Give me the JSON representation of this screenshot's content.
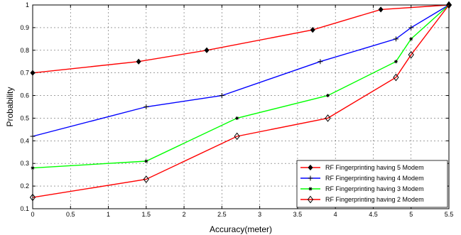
{
  "chart_data": {
    "type": "line",
    "xlabel": "Accuracy(meter)",
    "ylabel": "Probability",
    "xlim": [
      0,
      5.5
    ],
    "ylim": [
      0.1,
      1
    ],
    "xticks": [
      0,
      0.5,
      1,
      1.5,
      2,
      2.5,
      3,
      3.5,
      4,
      4.5,
      5,
      5.5
    ],
    "xtick_labels": [
      "0",
      "0.5",
      "1",
      "1.5",
      "2",
      "2.5",
      "3",
      "3.5",
      "4",
      "4.5",
      "5",
      "5.5"
    ],
    "yticks": [
      0.1,
      0.2,
      0.3,
      0.4,
      0.5,
      0.6,
      0.7,
      0.8,
      0.9,
      1
    ],
    "ytick_labels": [
      "0.1",
      "0.2",
      "0.3",
      "0.4",
      "0.5",
      "0.6",
      "0.7",
      "0.8",
      "0.9",
      "1"
    ],
    "grid": true,
    "legend_position": "bottom-right",
    "series": [
      {
        "name": "RF Fingerprinting having 5 Modem",
        "color": "#ff0000",
        "marker": "filled-diamond",
        "points": [
          [
            0,
            0.7
          ],
          [
            1.4,
            0.75
          ],
          [
            2.3,
            0.8
          ],
          [
            3.7,
            0.89
          ],
          [
            4.6,
            0.98
          ],
          [
            5.5,
            1.0
          ]
        ]
      },
      {
        "name": "RF Fingerprinting having 4 Modem",
        "color": "#0000ff",
        "marker": "plus",
        "points": [
          [
            0,
            0.42
          ],
          [
            1.5,
            0.55
          ],
          [
            2.5,
            0.6
          ],
          [
            3.8,
            0.75
          ],
          [
            4.8,
            0.85
          ],
          [
            5.0,
            0.9
          ],
          [
            5.5,
            1.0
          ]
        ]
      },
      {
        "name": "RF Fingerprinting having 3 Modem",
        "color": "#00ff00",
        "marker": "small-star",
        "points": [
          [
            0,
            0.28
          ],
          [
            1.5,
            0.31
          ],
          [
            2.7,
            0.5
          ],
          [
            3.9,
            0.6
          ],
          [
            4.8,
            0.75
          ],
          [
            5.0,
            0.85
          ],
          [
            5.5,
            1.0
          ]
        ]
      },
      {
        "name": "RF Fingerprinting having 2 Modem",
        "color": "#ff0000",
        "marker": "open-diamond",
        "points": [
          [
            0,
            0.15
          ],
          [
            1.5,
            0.23
          ],
          [
            2.7,
            0.42
          ],
          [
            3.9,
            0.5
          ],
          [
            4.8,
            0.68
          ],
          [
            5.0,
            0.78
          ],
          [
            5.5,
            1.0
          ]
        ]
      }
    ]
  }
}
